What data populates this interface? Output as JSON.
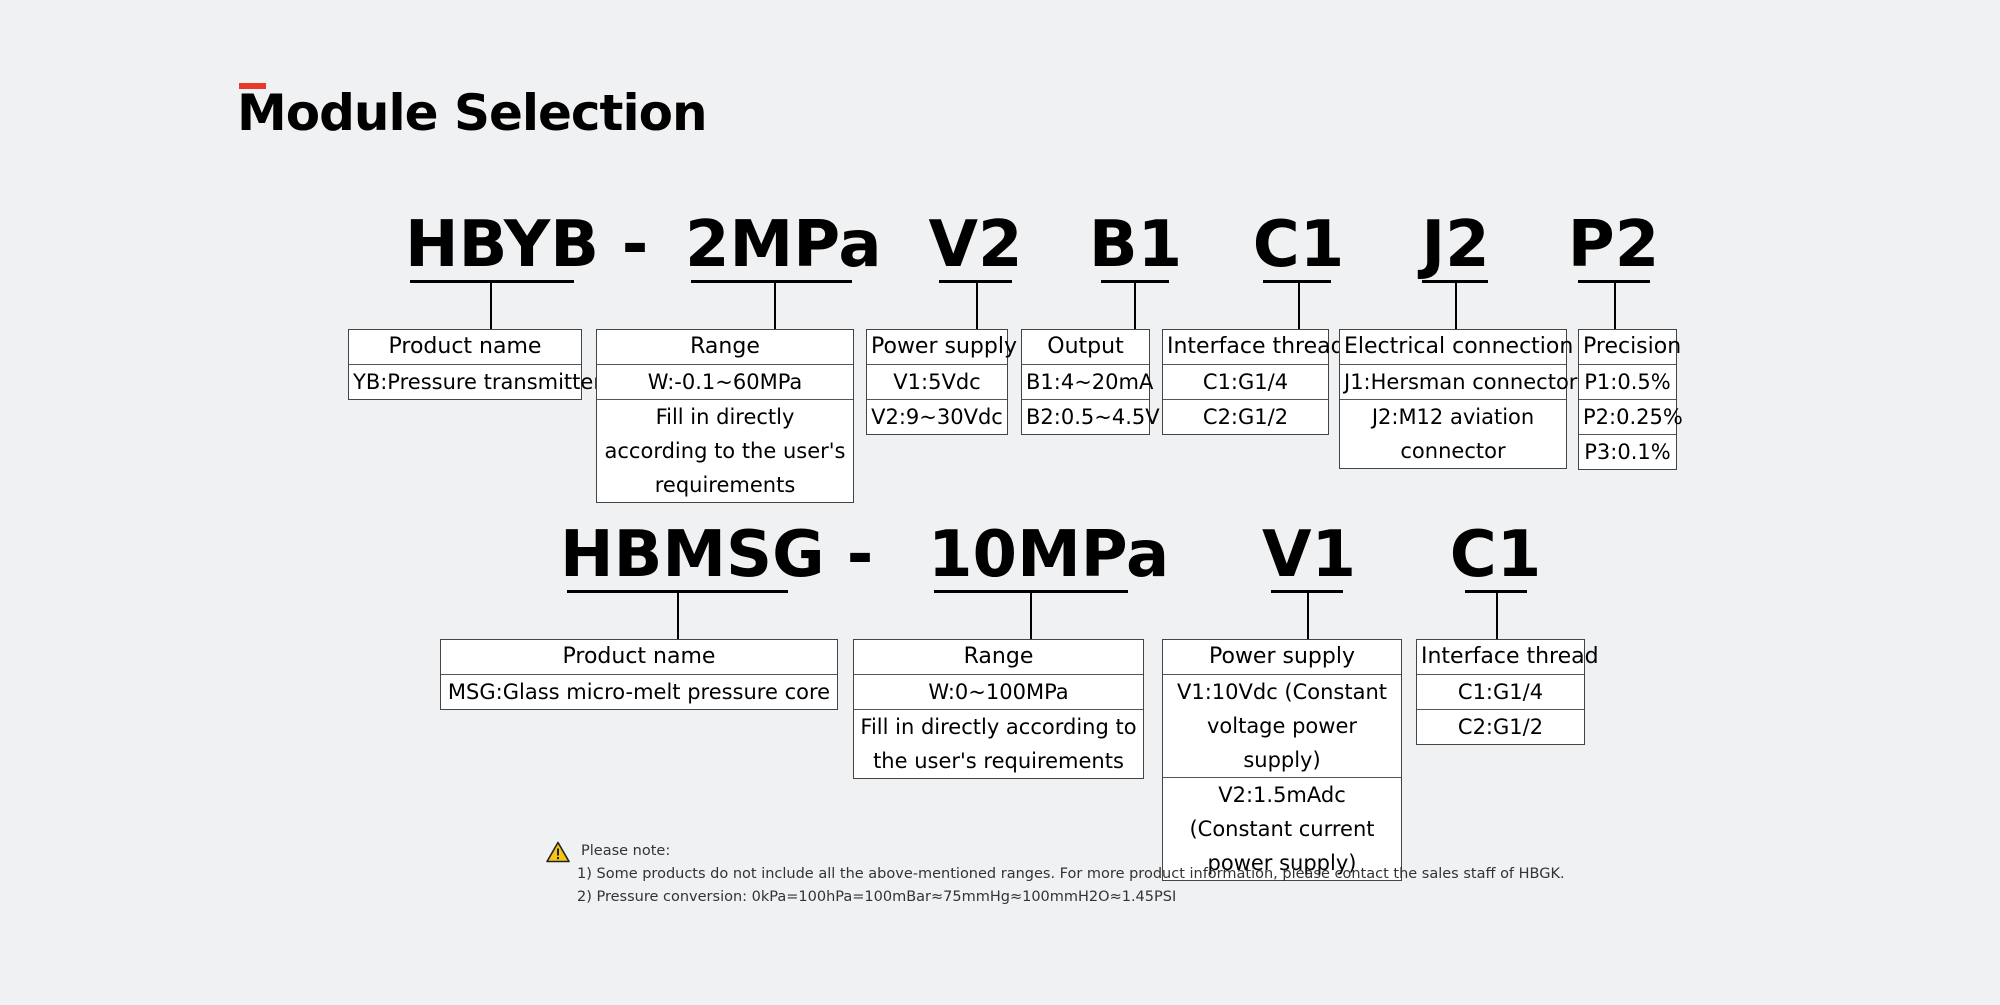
{
  "title": "Module Selection",
  "colors": {
    "accent": "#e8392b",
    "background": "#f0f1f3"
  },
  "model1": {
    "codes": [
      "HBYB",
      "-",
      "2MPa",
      "V2",
      "B1",
      "C1",
      "J2",
      "P2"
    ],
    "tables": [
      {
        "header": "Product name",
        "rows": [
          "YB:Pressure transmitter"
        ]
      },
      {
        "header": "Range",
        "rows": [
          "W:-0.1~60MPa",
          "Fill in directly according to the user's requirements"
        ]
      },
      {
        "header": "Power supply",
        "rows": [
          "V1:5Vdc",
          "V2:9~30Vdc"
        ]
      },
      {
        "header": "Output",
        "rows": [
          "B1:4~20mA",
          "B2:0.5~4.5V"
        ]
      },
      {
        "header": "Interface thread",
        "rows": [
          "C1:G1/4",
          "C2:G1/2"
        ]
      },
      {
        "header": "Electrical connection",
        "rows": [
          "J1:Hersman connector",
          "J2:M12 aviation connector"
        ]
      },
      {
        "header": "Precision",
        "rows": [
          "P1:0.5%",
          "P2:0.25%",
          "P3:0.1%"
        ]
      }
    ]
  },
  "model2": {
    "codes": [
      "HBMSG",
      "-",
      "10MPa",
      "V1",
      "C1"
    ],
    "tables": [
      {
        "header": "Product name",
        "rows": [
          "MSG:Glass micro-melt pressure core"
        ]
      },
      {
        "header": "Range",
        "rows": [
          "W:0~100MPa",
          "Fill in directly according to the user's requirements"
        ]
      },
      {
        "header": "Power supply",
        "rows": [
          "V1:10Vdc (Constant voltage power supply)",
          "V2:1.5mAdc (Constant current power supply)"
        ]
      },
      {
        "header": "Interface thread",
        "rows": [
          "C1:G1/4",
          "C2:G1/2"
        ]
      }
    ]
  },
  "notes": {
    "icon": "warning-icon",
    "heading": "Please note:",
    "lines": [
      "1) Some products do not include all the above-mentioned ranges. For more product information, please contact the sales staff of HBGK.",
      "2) Pressure conversion: 0kPa=100hPa=100mBar≈75mmHg≈100mmH2O≈1.45PSI"
    ]
  }
}
